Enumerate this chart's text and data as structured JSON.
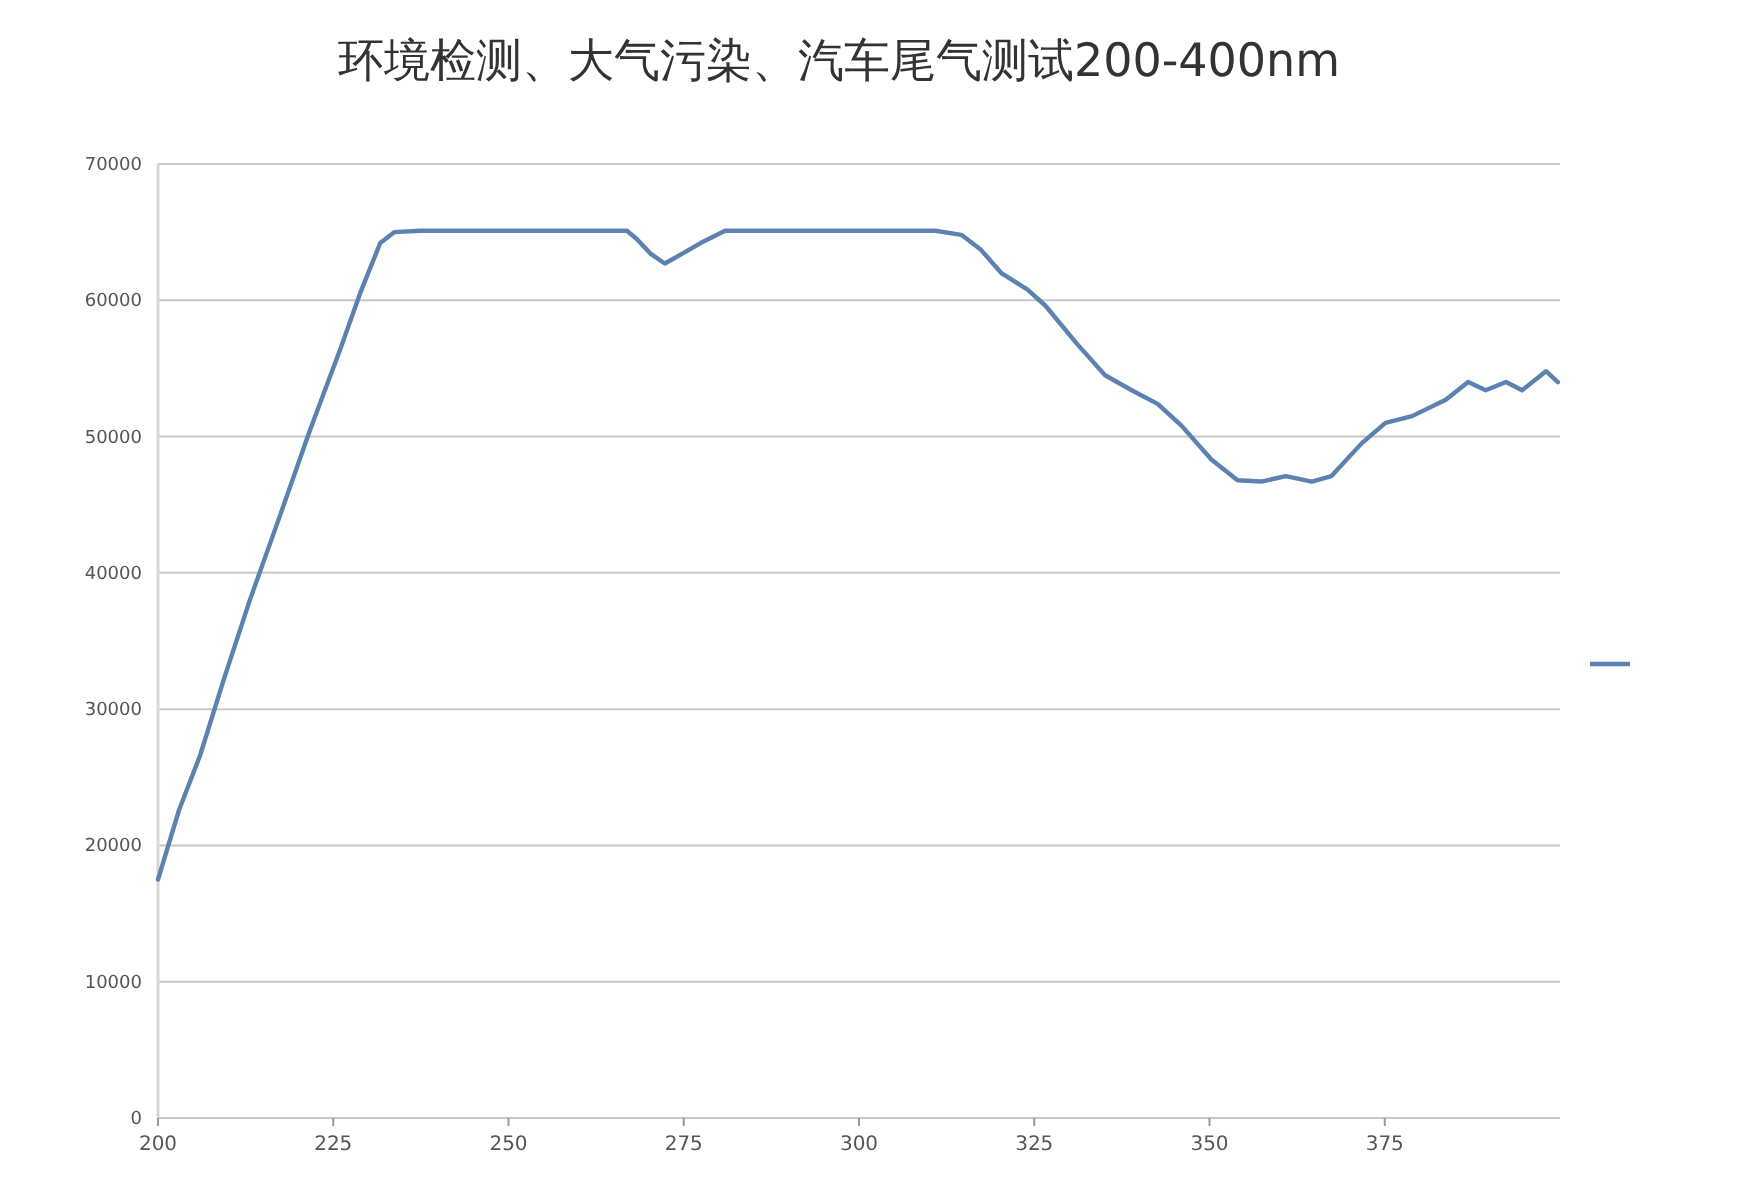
{
  "chart_data": {
    "type": "line",
    "title": "环境检测、大气污染、汽车尾气测试200-400nm",
    "x": [
      200,
      201,
      203,
      206,
      209.4,
      213.1,
      217.4,
      221.7,
      226,
      228.9,
      231.7,
      233.7,
      237.4,
      248.9,
      263,
      266.9,
      268.3,
      270.3,
      272.3,
      273.7,
      277.4,
      280.9,
      291.7,
      310.9,
      314.6,
      317.4,
      320.3,
      324,
      326.6,
      331.1,
      335.1,
      338.9,
      342.6,
      346,
      350.3,
      354,
      357.4,
      360.9,
      364.6,
      367.4,
      371.7,
      375.1,
      378.9,
      383.7,
      386.9,
      389.4,
      392.3,
      394.6,
      398,
      399.7
    ],
    "series": [
      {
        "color": "#5b82b0",
        "values": [
          17500,
          19200,
          22600,
          26600,
          32200,
          38000,
          44200,
          50500,
          56400,
          60600,
          64200,
          65000,
          65100,
          65100,
          65100,
          65100,
          64500,
          63400,
          62700,
          63100,
          64200,
          65100,
          65100,
          65100,
          64800,
          63700,
          62000,
          60800,
          59600,
          56800,
          54500,
          53400,
          52400,
          50800,
          48300,
          46800,
          46700,
          47100,
          46700,
          47100,
          49500,
          51000,
          51500,
          52700,
          54000,
          53400,
          54000,
          53400,
          54800,
          54000
        ]
      }
    ],
    "xlim": [
      200,
      400
    ],
    "xticks": [
      200,
      225,
      250,
      275,
      300,
      325,
      350,
      375
    ],
    "ylim": [
      0,
      70000
    ],
    "yticks": [
      0,
      10000,
      20000,
      30000,
      40000,
      50000,
      60000,
      70000
    ],
    "grid": "y",
    "line_style": "solid",
    "marker": "none"
  }
}
